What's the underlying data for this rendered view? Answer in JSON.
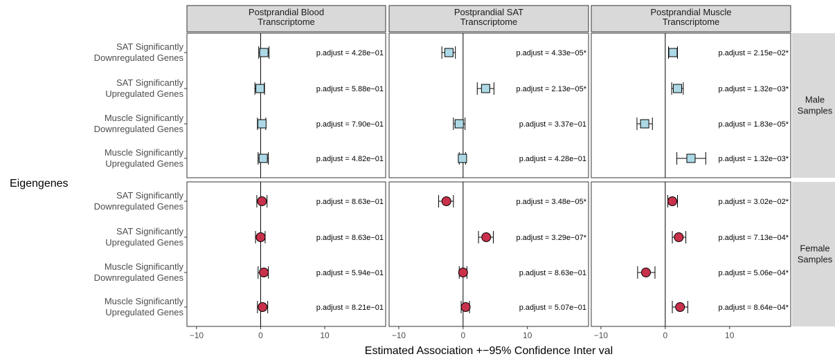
{
  "chart_data": {
    "type": "forest",
    "xlabel": "Estimated Association +−95% Confidence Inter val",
    "ylabel": "Eigengenes",
    "xlim": [
      -11.5,
      19.5
    ],
    "x_ticks": [
      -10,
      0,
      10
    ],
    "x_tick_labels": [
      "−10",
      "0",
      "10"
    ],
    "reference_line": 0,
    "columns": [
      "Postprandial Blood\nTranscriptome",
      "Postprandial SAT\nTranscriptome",
      "Postprandial Muscle\nTranscriptome"
    ],
    "row_groups": [
      {
        "name": "Male\nSamples",
        "marker": "square",
        "fill": "#add8e6"
      },
      {
        "name": "Female\nSamples",
        "marker": "circle",
        "fill": "#c8314b"
      }
    ],
    "categories": [
      "SAT Significantly\nDownregulated Genes",
      "SAT Significantly\nUpregulated Genes",
      "Muscle Significantly\nDownregulated Genes",
      "Muscle Significantly\nUpregulated Genes"
    ],
    "panels": [
      {
        "row": 0,
        "col": 0,
        "points": [
          {
            "est": 0.5,
            "lo": -0.3,
            "hi": 1.3,
            "p": "p.adjust = 4.28e−01"
          },
          {
            "est": -0.1,
            "lo": -0.9,
            "hi": 0.6,
            "p": "p.adjust = 5.88e−01"
          },
          {
            "est": 0.2,
            "lo": -0.5,
            "hi": 0.8,
            "p": "p.adjust = 7.90e−01"
          },
          {
            "est": 0.4,
            "lo": -0.4,
            "hi": 1.2,
            "p": "p.adjust = 4.82e−01"
          }
        ]
      },
      {
        "row": 0,
        "col": 1,
        "points": [
          {
            "est": -2.2,
            "lo": -3.3,
            "hi": -1.2,
            "p": "p.adjust = 4.33e−05*"
          },
          {
            "est": 3.5,
            "lo": 2.2,
            "hi": 4.8,
            "p": "p.adjust = 2.13e−05*"
          },
          {
            "est": -0.6,
            "lo": -1.5,
            "hi": 0.3,
            "p": "p.adjust = 3.37e−01"
          },
          {
            "est": -0.1,
            "lo": -0.6,
            "hi": 0.4,
            "p": "p.adjust = 4.28e−01"
          }
        ]
      },
      {
        "row": 0,
        "col": 2,
        "points": [
          {
            "est": 1.2,
            "lo": 0.5,
            "hi": 1.9,
            "p": "p.adjust = 2.15e−02*"
          },
          {
            "est": 1.9,
            "lo": 1.0,
            "hi": 2.8,
            "p": "p.adjust = 1.32e−03*"
          },
          {
            "est": -3.2,
            "lo": -4.4,
            "hi": -2.0,
            "p": "p.adjust = 1.83e−05*"
          },
          {
            "est": 4.0,
            "lo": 1.8,
            "hi": 6.3,
            "p": "p.adjust = 1.32e−03*"
          }
        ]
      },
      {
        "row": 1,
        "col": 0,
        "points": [
          {
            "est": 0.2,
            "lo": -0.6,
            "hi": 1.0,
            "p": "p.adjust = 8.63e−01"
          },
          {
            "est": 0.0,
            "lo": -0.8,
            "hi": 0.7,
            "p": "p.adjust = 8.63e−01"
          },
          {
            "est": 0.5,
            "lo": -0.4,
            "hi": 1.2,
            "p": "p.adjust = 5.94e−01"
          },
          {
            "est": 0.3,
            "lo": -0.5,
            "hi": 1.1,
            "p": "p.adjust = 8.21e−01"
          }
        ]
      },
      {
        "row": 1,
        "col": 1,
        "points": [
          {
            "est": -2.6,
            "lo": -3.8,
            "hi": -1.5,
            "p": "p.adjust = 3.48e−05*"
          },
          {
            "est": 3.6,
            "lo": 2.4,
            "hi": 4.7,
            "p": "p.adjust = 3.29e−07*"
          },
          {
            "est": 0.0,
            "lo": -0.6,
            "hi": 0.6,
            "p": "p.adjust = 8.63e−01"
          },
          {
            "est": 0.4,
            "lo": -0.3,
            "hi": 1.0,
            "p": "p.adjust = 5.07e−01"
          }
        ]
      },
      {
        "row": 1,
        "col": 2,
        "points": [
          {
            "est": 1.1,
            "lo": 0.4,
            "hi": 1.9,
            "p": "p.adjust = 3.02e−02*"
          },
          {
            "est": 2.1,
            "lo": 1.1,
            "hi": 3.2,
            "p": "p.adjust = 7.13e−04*"
          },
          {
            "est": -3.0,
            "lo": -4.3,
            "hi": -1.6,
            "p": "p.adjust = 5.06e−04*"
          },
          {
            "est": 2.3,
            "lo": 1.1,
            "hi": 3.5,
            "p": "p.adjust = 8.64e−04*"
          }
        ]
      }
    ],
    "grid": false,
    "legend": "none"
  }
}
